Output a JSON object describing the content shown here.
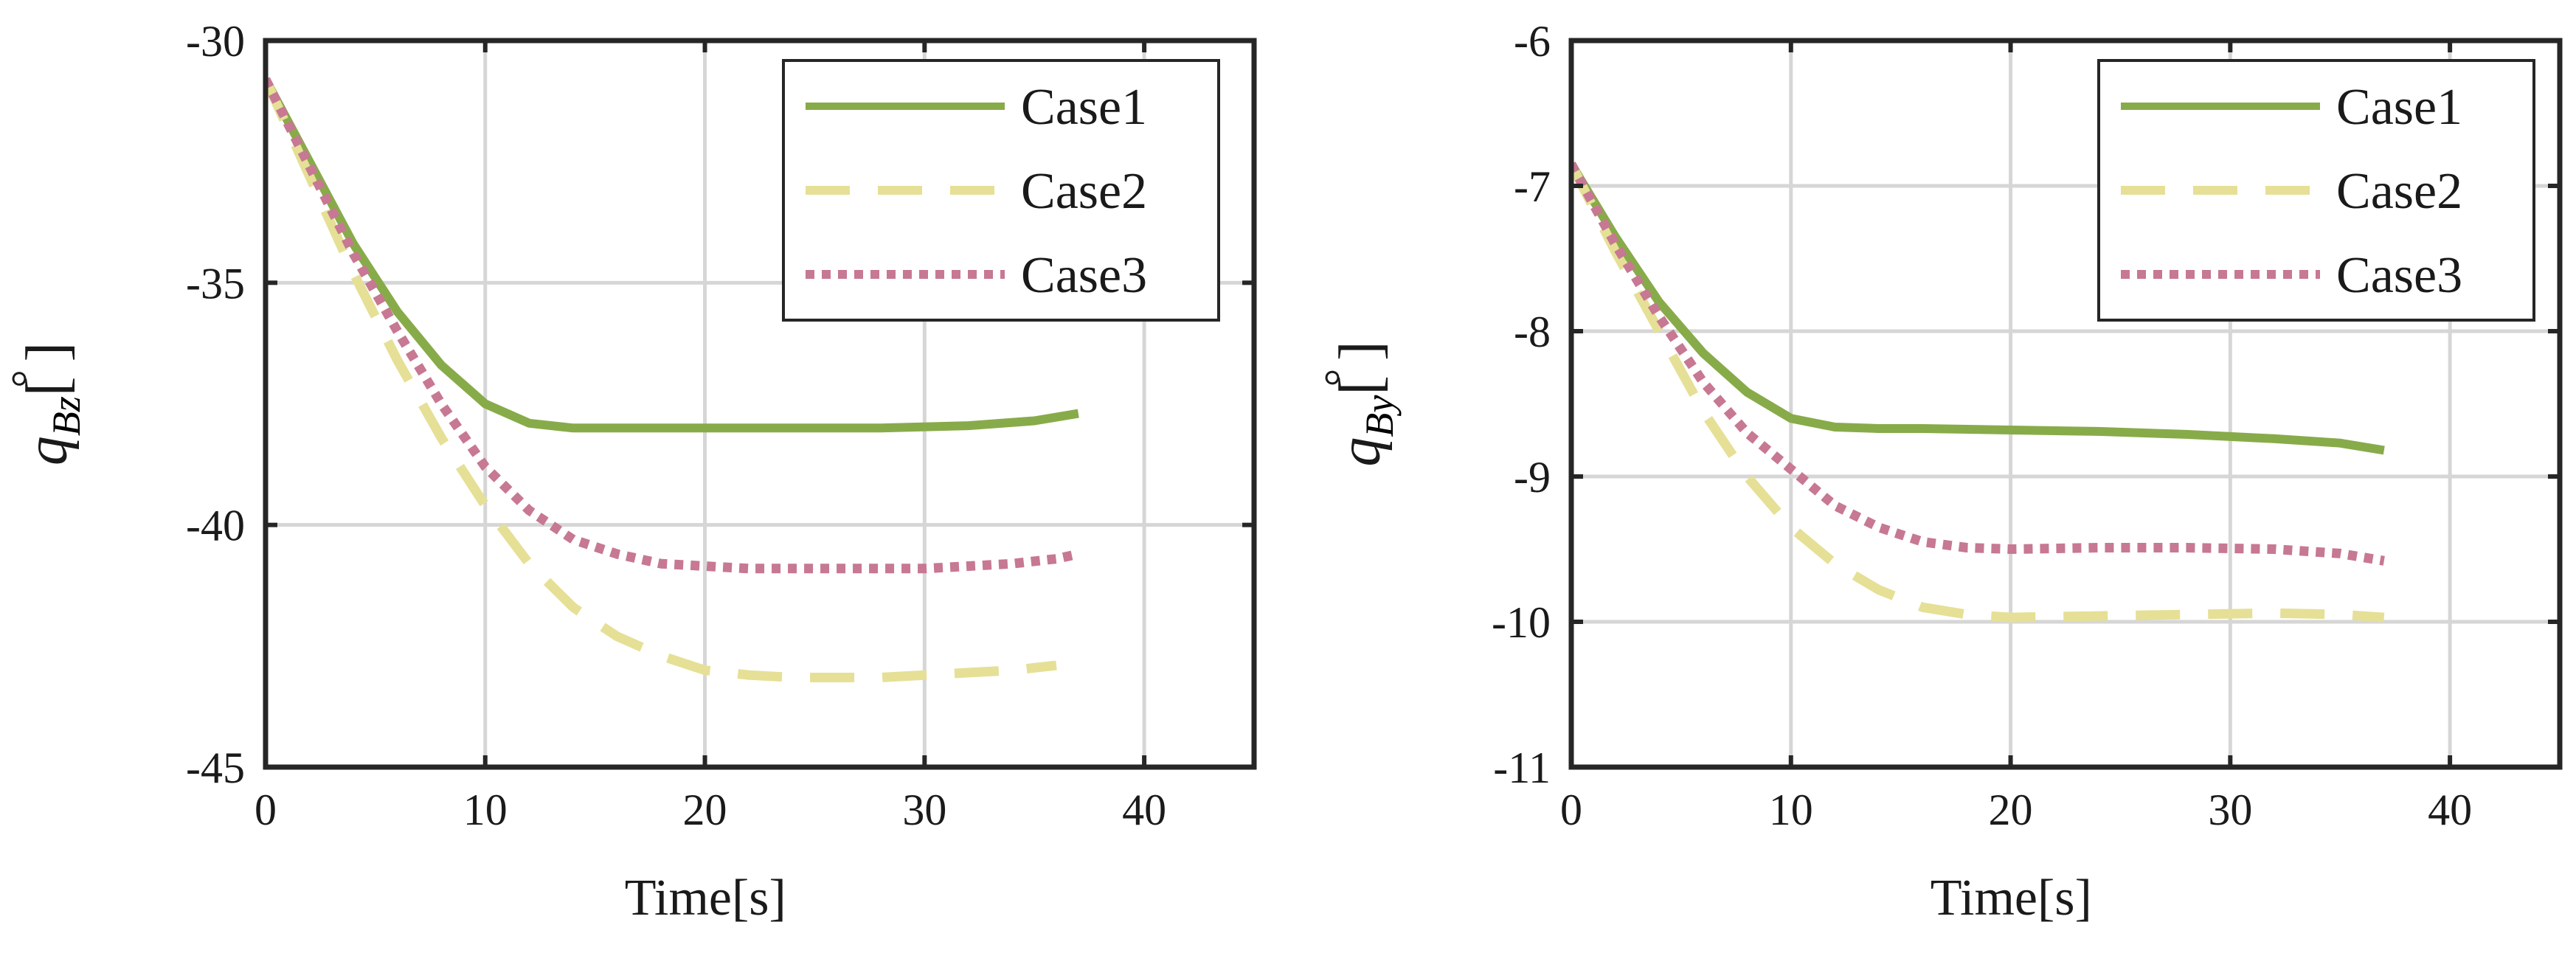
{
  "chart_data": [
    {
      "type": "line",
      "xlabel": "Time[s]",
      "ylabel": {
        "symbol": "q",
        "subscript": "Bz",
        "unit": "[ ]",
        "unit_symbol": "°"
      },
      "xlim": [
        0,
        45
      ],
      "ylim": [
        -45,
        -30
      ],
      "xticks": [
        0,
        10,
        20,
        30,
        40
      ],
      "yticks": [
        -45,
        -40,
        -35,
        -30
      ],
      "grid": true,
      "legend_position": "top-right",
      "series": [
        {
          "name": "Case1",
          "style": "solid",
          "color": "#88ab4a",
          "x": [
            0,
            2,
            4,
            6,
            8,
            10,
            12,
            14,
            16,
            20,
            24,
            28,
            32,
            35,
            37
          ],
          "y": [
            -30.8,
            -32.5,
            -34.2,
            -35.6,
            -36.7,
            -37.5,
            -37.9,
            -38.0,
            -38.0,
            -38.0,
            -38.0,
            -38.0,
            -37.95,
            -37.85,
            -37.7
          ]
        },
        {
          "name": "Case2",
          "style": "dashed",
          "color": "#e5e096",
          "x": [
            0,
            2,
            4,
            6,
            8,
            10,
            12,
            14,
            16,
            18,
            20,
            22,
            24,
            26,
            28,
            30,
            32,
            34,
            36
          ],
          "y": [
            -30.8,
            -32.8,
            -34.8,
            -36.6,
            -38.2,
            -39.6,
            -40.8,
            -41.7,
            -42.3,
            -42.7,
            -43.0,
            -43.1,
            -43.15,
            -43.15,
            -43.15,
            -43.1,
            -43.05,
            -43.0,
            -42.9
          ]
        },
        {
          "name": "Case3",
          "style": "dotted",
          "color": "#c77893",
          "x": [
            0,
            2,
            4,
            6,
            8,
            10,
            12,
            14,
            16,
            18,
            20,
            22,
            24,
            26,
            28,
            30,
            32,
            34,
            36,
            37
          ],
          "y": [
            -30.8,
            -32.6,
            -34.4,
            -36.0,
            -37.5,
            -38.8,
            -39.7,
            -40.3,
            -40.6,
            -40.8,
            -40.85,
            -40.9,
            -40.9,
            -40.9,
            -40.9,
            -40.9,
            -40.85,
            -40.8,
            -40.7,
            -40.6
          ]
        }
      ]
    },
    {
      "type": "line",
      "xlabel": "Time[s]",
      "ylabel": {
        "symbol": "q",
        "subscript": "By",
        "unit": "[ ]",
        "unit_symbol": "°"
      },
      "xlim": [
        0,
        45
      ],
      "ylim": [
        -11,
        -6
      ],
      "xticks": [
        0,
        10,
        20,
        30,
        40
      ],
      "yticks": [
        -11,
        -10,
        -9,
        -8,
        -7,
        -6
      ],
      "grid": true,
      "legend_position": "top-right",
      "series": [
        {
          "name": "Case1",
          "style": "solid",
          "color": "#88ab4a",
          "x": [
            0,
            2,
            4,
            6,
            8,
            10,
            12,
            14,
            16,
            20,
            24,
            28,
            32,
            35,
            37
          ],
          "y": [
            -6.85,
            -7.35,
            -7.8,
            -8.15,
            -8.42,
            -8.6,
            -8.66,
            -8.67,
            -8.67,
            -8.68,
            -8.69,
            -8.71,
            -8.74,
            -8.77,
            -8.82
          ]
        },
        {
          "name": "Case2",
          "style": "dashed",
          "color": "#e5e096",
          "x": [
            0,
            2,
            4,
            6,
            8,
            10,
            12,
            14,
            16,
            18,
            20,
            24,
            28,
            32,
            35,
            37
          ],
          "y": [
            -6.85,
            -7.45,
            -8.0,
            -8.55,
            -9.0,
            -9.35,
            -9.6,
            -9.78,
            -9.9,
            -9.95,
            -9.97,
            -9.96,
            -9.95,
            -9.94,
            -9.95,
            -9.97
          ]
        },
        {
          "name": "Case3",
          "style": "dotted",
          "color": "#c77893",
          "x": [
            0,
            2,
            4,
            6,
            8,
            10,
            12,
            14,
            16,
            18,
            20,
            24,
            28,
            32,
            35,
            37
          ],
          "y": [
            -6.85,
            -7.4,
            -7.9,
            -8.35,
            -8.7,
            -8.95,
            -9.2,
            -9.35,
            -9.45,
            -9.49,
            -9.5,
            -9.49,
            -9.49,
            -9.5,
            -9.53,
            -9.58
          ]
        }
      ]
    }
  ]
}
